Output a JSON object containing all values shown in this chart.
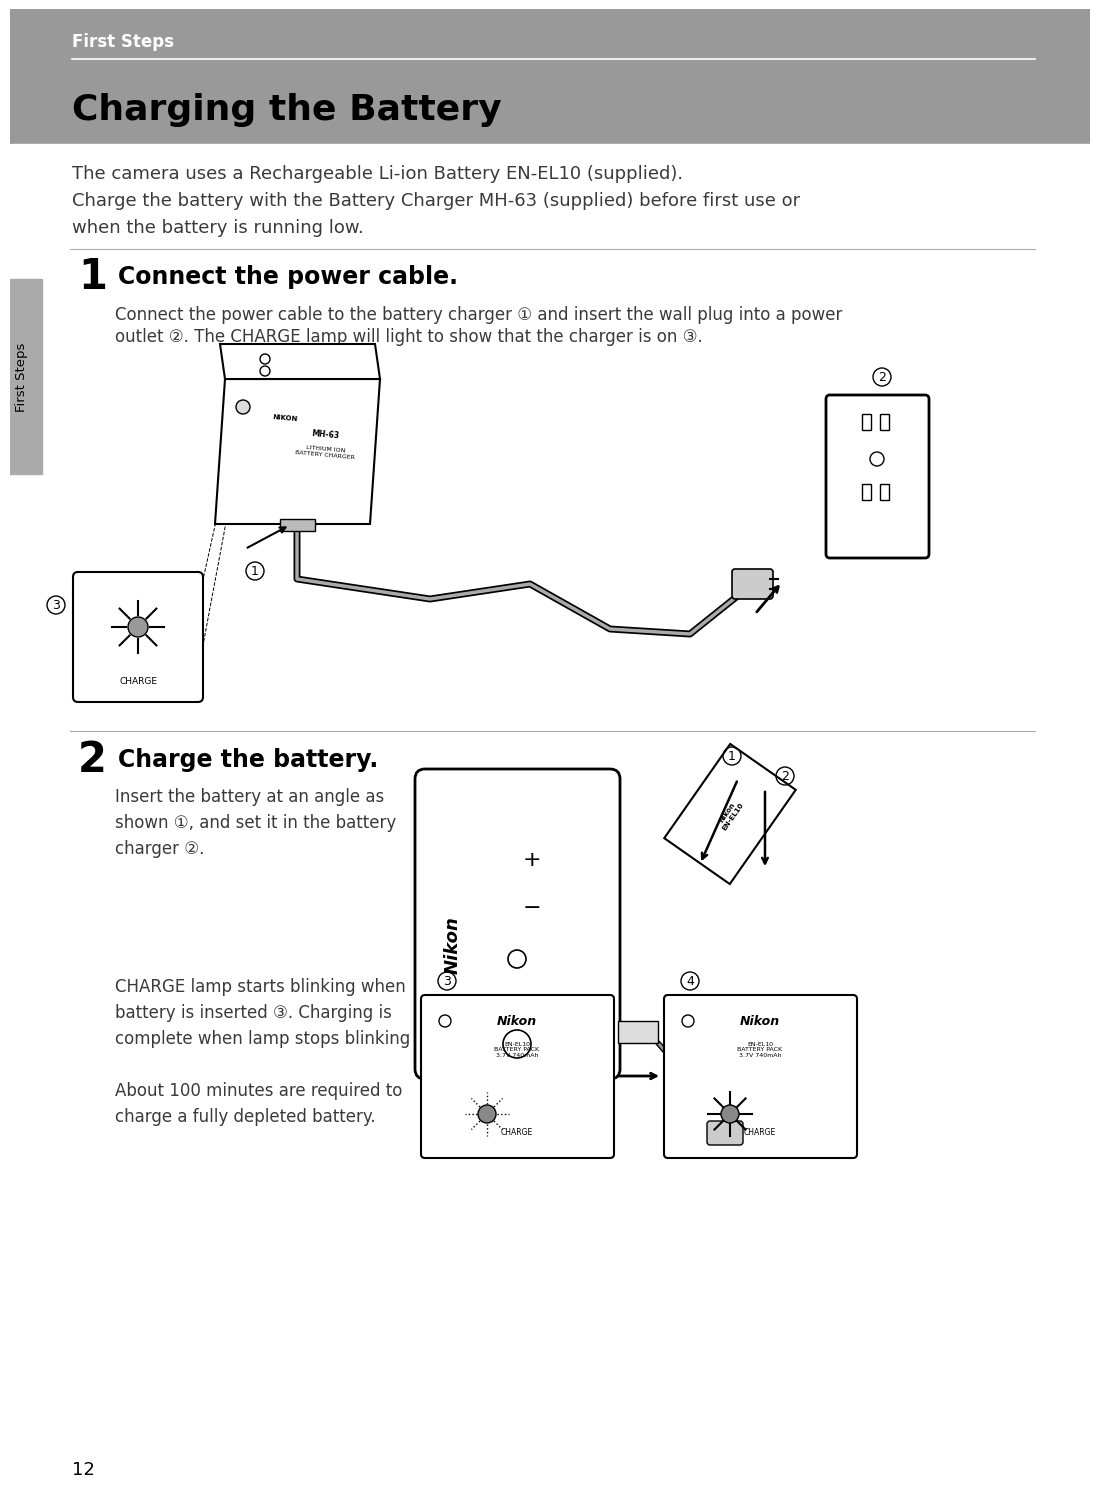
{
  "page_bg": "#ffffff",
  "header_bg": "#999999",
  "header_text": "First Steps",
  "header_text_color": "#ffffff",
  "title": "Charging the Battery",
  "title_color": "#000000",
  "sidebar_bg": "#aaaaaa",
  "sidebar_text": "First Steps",
  "intro_lines": [
    "The camera uses a Rechargeable Li-ion Battery EN-EL10 (supplied).",
    "Charge the battery with the Battery Charger MH-63 (supplied) before first use or",
    "when the battery is running low."
  ],
  "step1_num": "1",
  "step1_head": "Connect the power cable.",
  "step1_body_l1": "Connect the power cable to the battery charger ① and insert the wall plug into a power",
  "step1_body_l2": "outlet ②. The CHARGE lamp will light to show that the charger is on ③.",
  "step2_num": "2",
  "step2_head": "Charge the battery.",
  "step2_body1_l1": "Insert the battery at an angle as",
  "step2_body1_l2": "shown ①, and set it in the battery",
  "step2_body1_l3": "charger ②.",
  "step2_body2_l1": "CHARGE lamp starts blinking when",
  "step2_body2_l2": "battery is inserted ③. Charging is",
  "step2_body2_l3": "complete when lamp stops blinking ④.",
  "step2_body2_l4": "",
  "step2_body2_l5": "About 100 minutes are required to",
  "step2_body2_l6": "charge a fully depleted battery.",
  "page_num": "12",
  "body_text_color": "#3a3a3a",
  "divider_color": "#aaaaaa"
}
